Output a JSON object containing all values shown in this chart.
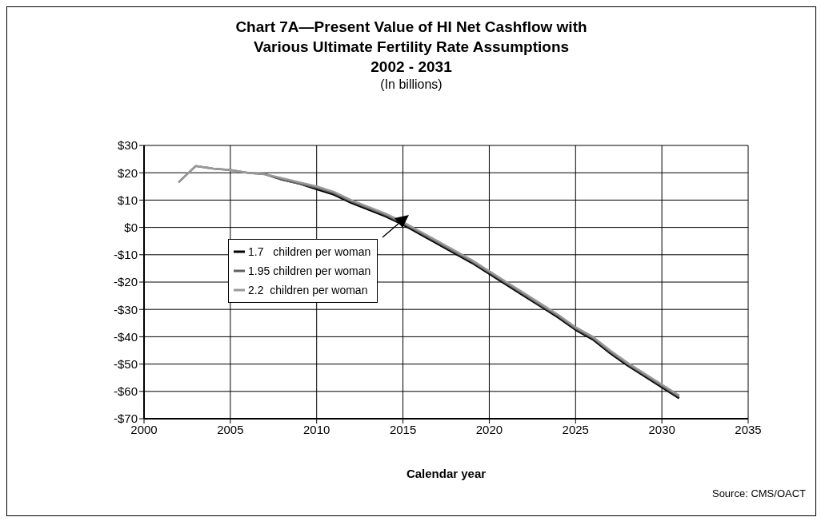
{
  "chart_data": {
    "type": "line",
    "title": "Chart 7A—Present Value of HI Net Cashflow with\nVarious Ultimate Fertility Rate Assumptions\n2002 - 2031",
    "subtitle": "(In billions)",
    "xlabel": "Calendar year",
    "x": [
      2002,
      2003,
      2004,
      2005,
      2006,
      2007,
      2008,
      2009,
      2010,
      2011,
      2012,
      2013,
      2014,
      2015,
      2016,
      2017,
      2018,
      2019,
      2020,
      2021,
      2022,
      2023,
      2024,
      2025,
      2026,
      2027,
      2028,
      2029,
      2030,
      2031
    ],
    "series": [
      {
        "name": "1.7   children per woman",
        "color": "#000000",
        "values": [
          null,
          null,
          null,
          null,
          null,
          19.5,
          17.5,
          16,
          14,
          12,
          9,
          6.5,
          4,
          1,
          -2.5,
          -6,
          -9.5,
          -13,
          -17,
          -21,
          -25,
          -29,
          -33,
          -37.5,
          -41,
          -46,
          -50.5,
          -54.5,
          -58.5,
          -62.5
        ]
      },
      {
        "name": "1.95 children per woman",
        "color": "#606060",
        "values": [
          16.5,
          22.5,
          21.5,
          21,
          20,
          19.5,
          17.5,
          16,
          14.5,
          12.5,
          9.5,
          7,
          4.5,
          1.5,
          -2,
          -5.5,
          -9,
          -12.5,
          -16.5,
          -20.5,
          -24.5,
          -28.5,
          -32.5,
          -37,
          -40.5,
          -45.5,
          -50,
          -54,
          -58,
          -62
        ]
      },
      {
        "name": "2.2  children per woman",
        "color": "#999999",
        "values": [
          16.5,
          22.5,
          21.5,
          21,
          20,
          19.5,
          18,
          16.5,
          15,
          13,
          10,
          7.5,
          5,
          2,
          -1.5,
          -5,
          -8.5,
          -12,
          -16,
          -20,
          -24,
          -28,
          -32,
          -36.5,
          -40,
          -45,
          -49.5,
          -53.5,
          -57.5,
          -61.5
        ]
      }
    ],
    "xlim": [
      2000,
      2035
    ],
    "xticks": [
      2000,
      2005,
      2010,
      2015,
      2020,
      2025,
      2030,
      2035
    ],
    "ylim": [
      -70,
      30
    ],
    "yticks": [
      {
        "value": -70,
        "label": "-$70"
      },
      {
        "value": -60,
        "label": "-$60"
      },
      {
        "value": -50,
        "label": "-$50"
      },
      {
        "value": -40,
        "label": "-$40"
      },
      {
        "value": -30,
        "label": "-$30"
      },
      {
        "value": -20,
        "label": "-$20"
      },
      {
        "value": -10,
        "label": "-$10"
      },
      {
        "value": 0,
        "label": "$0"
      },
      {
        "value": 10,
        "label": "$10"
      },
      {
        "value": 20,
        "label": "$20"
      },
      {
        "value": 30,
        "label": "$30"
      }
    ],
    "grid": true,
    "legend": "left",
    "marker": "none",
    "line_style": "solid",
    "annotations": [
      "Source: CMS/OACT"
    ]
  }
}
